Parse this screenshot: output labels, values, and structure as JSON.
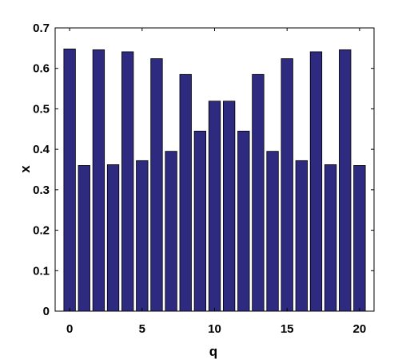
{
  "chart_data": {
    "type": "bar",
    "title": "",
    "xlabel": "q",
    "ylabel": "x",
    "x": [
      0,
      1,
      2,
      3,
      4,
      5,
      6,
      7,
      8,
      9,
      10,
      11,
      12,
      13,
      14,
      15,
      16,
      17,
      18,
      19,
      20
    ],
    "values": [
      0.648,
      0.36,
      0.646,
      0.362,
      0.641,
      0.372,
      0.624,
      0.395,
      0.585,
      0.445,
      0.519,
      0.519,
      0.445,
      0.585,
      0.395,
      0.624,
      0.372,
      0.641,
      0.362,
      0.646,
      0.36
    ],
    "xlim": [
      -1,
      21
    ],
    "ylim": [
      0,
      0.7
    ],
    "xticks": [
      0,
      5,
      10,
      15,
      20
    ],
    "yticks": [
      0,
      0.1,
      0.2,
      0.3,
      0.4,
      0.5,
      0.6,
      0.7
    ],
    "xtick_labels": [
      "0",
      "5",
      "10",
      "15",
      "20"
    ],
    "ytick_labels": [
      "0",
      "0.1",
      "0.2",
      "0.3",
      "0.4",
      "0.5",
      "0.6",
      "0.7"
    ],
    "bar_color": "#2e2a80",
    "grid": false,
    "legend": "none"
  }
}
